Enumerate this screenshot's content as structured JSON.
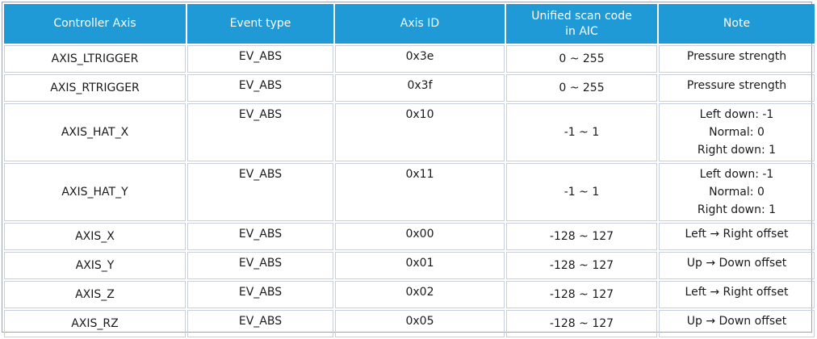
{
  "headers": {
    "controller_axis": "Controller Axis",
    "event_type": "Event type",
    "axis_id": "Axis ID",
    "scan_code_line1": "Unified scan code",
    "scan_code_line2": "in AIC",
    "note": "Note"
  },
  "rows": [
    {
      "axis": "AXIS_LTRIGGER",
      "event": "EV_ABS",
      "id": "0x3e",
      "range": "0 ~ 255",
      "note": [
        "Pressure strength"
      ]
    },
    {
      "axis": "AXIS_RTRIGGER",
      "event": "EV_ABS",
      "id": "0x3f",
      "range": "0 ~ 255",
      "note": [
        "Pressure strength"
      ]
    },
    {
      "axis": "AXIS_HAT_X",
      "event": "EV_ABS",
      "id": "0x10",
      "range": "-1 ~ 1",
      "note": [
        "Left down: -1",
        "Normal: 0",
        "Right down: 1"
      ]
    },
    {
      "axis": "AXIS_HAT_Y",
      "event": "EV_ABS",
      "id": "0x11",
      "range": "-1 ~ 1",
      "note": [
        "Left down: -1",
        "Normal: 0",
        "Right down: 1"
      ]
    },
    {
      "axis": "AXIS_X",
      "event": "EV_ABS",
      "id": "0x00",
      "range": "-128 ~ 127",
      "note": [
        "Left → Right offset"
      ]
    },
    {
      "axis": "AXIS_Y",
      "event": "EV_ABS",
      "id": "0x01",
      "range": "-128 ~ 127",
      "note": [
        "Up → Down offset"
      ]
    },
    {
      "axis": "AXIS_Z",
      "event": "EV_ABS",
      "id": "0x02",
      "range": "-128 ~ 127",
      "note": [
        "Left → Right offset"
      ]
    },
    {
      "axis": "AXIS_RZ",
      "event": "EV_ABS",
      "id": "0x05",
      "range": "-128 ~ 127",
      "note": [
        "Up → Down offset"
      ]
    }
  ],
  "colors": {
    "header_bg": "#1f9ad6",
    "header_text": "#ffffff",
    "cell_border": "#c7cede"
  }
}
